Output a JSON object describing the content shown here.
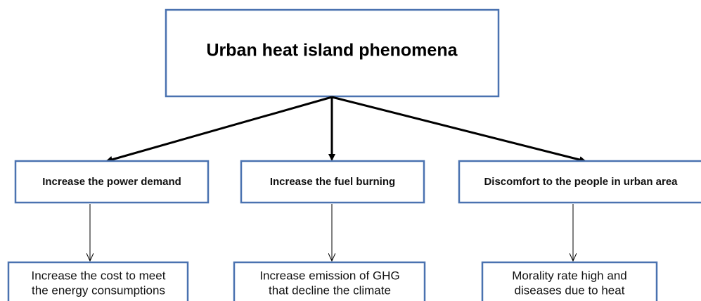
{
  "root": {
    "label": "Urban heat island phenomena"
  },
  "nodes": [
    {
      "label": "Increase the power demand",
      "effect": [
        "Increase the cost to meet",
        "the energy consumptions"
      ]
    },
    {
      "label": "Increase the fuel burning",
      "effect": [
        "Increase emission of GHG",
        "that decline the climate"
      ]
    },
    {
      "label": "Discomfort to the people in urban area",
      "effect": [
        "Morality rate high and",
        "diseases due to heat"
      ]
    }
  ]
}
